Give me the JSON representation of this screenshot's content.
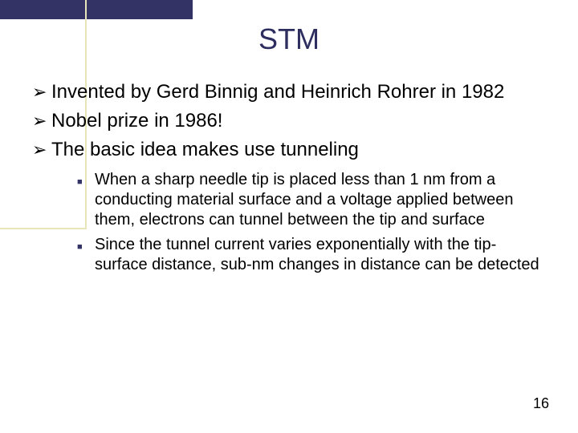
{
  "colors": {
    "top_bar": "#333366",
    "decor_line": "#e6e6b8",
    "title": "#2d2d60",
    "sub_bullet": "#333366",
    "text": "#000000",
    "background": "#ffffff"
  },
  "title": "STM",
  "bullets": [
    {
      "text": "Invented by Gerd Binnig and Heinrich Rohrer in 1982"
    },
    {
      "text": "Nobel prize in 1986!"
    },
    {
      "text": "The basic idea makes use tunneling"
    }
  ],
  "sub_bullets": [
    {
      "text": "When a sharp needle tip is placed less than 1 nm from a conducting material surface and a voltage applied between them, electrons can tunnel between the tip and surface"
    },
    {
      "text": "Since the tunnel current varies exponentially with the tip-surface distance, sub-nm changes in distance can be detected"
    }
  ],
  "page_number": "16",
  "typography": {
    "title_fontsize": 36,
    "bullet_fontsize": 24,
    "sub_bullet_fontsize": 20,
    "page_num_fontsize": 18
  }
}
